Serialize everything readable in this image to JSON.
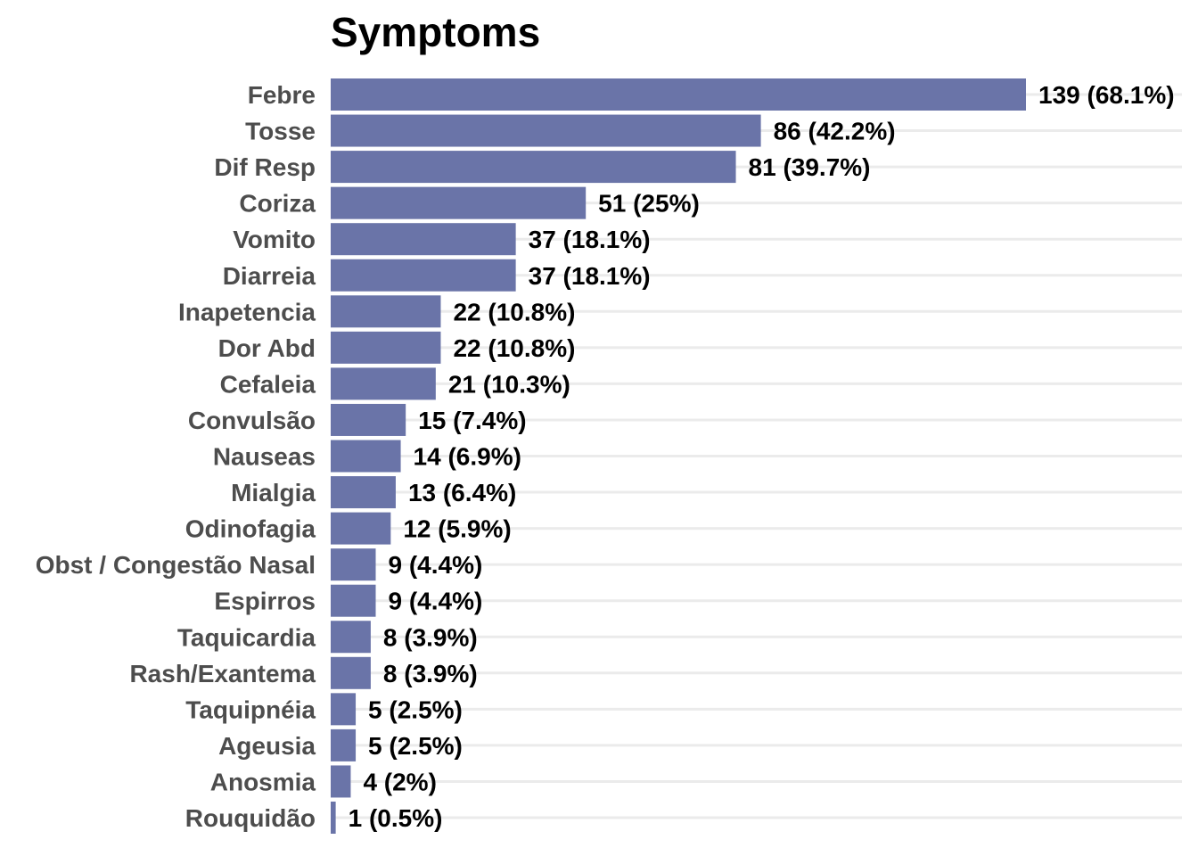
{
  "chart_data": {
    "type": "bar",
    "orientation": "horizontal",
    "title": "Symptoms",
    "xlabel": "",
    "ylabel": "",
    "categories": [
      "Febre",
      "Tosse",
      "Dif Resp",
      "Coriza",
      "Vomito",
      "Diarreia",
      "Inapetencia",
      "Dor Abd",
      "Cefaleia",
      "Convulsão",
      "Nauseas",
      "Mialgia",
      "Odinofagia",
      "Obst / Congestão Nasal",
      "Espirros",
      "Taquicardia",
      "Rash/Exantema",
      "Taquipnéia",
      "Ageusia",
      "Anosmia",
      "Rouquidão"
    ],
    "values": [
      139,
      86,
      81,
      51,
      37,
      37,
      22,
      22,
      21,
      15,
      14,
      13,
      12,
      9,
      9,
      8,
      8,
      5,
      5,
      4,
      1
    ],
    "labels": [
      "139 (68.1%)",
      "86 (42.2%)",
      "81 (39.7%)",
      "51 (25%)",
      "37 (18.1%)",
      "37 (18.1%)",
      "22 (10.8%)",
      "22 (10.8%)",
      "21 (10.3%)",
      "15 (7.4%)",
      "14 (6.9%)",
      "13 (6.4%)",
      "12 (5.9%)",
      "9 (4.4%)",
      "9 (4.4%)",
      "8 (3.9%)",
      "8 (3.9%)",
      "5 (2.5%)",
      "5 (2.5%)",
      "4 (2%)",
      "1 (0.5%)"
    ],
    "xlim": [
      0,
      139
    ],
    "grid": "horizontal-major",
    "legend": "none",
    "bar_color": "#6a74a8",
    "grid_color": "#ebebeb"
  }
}
